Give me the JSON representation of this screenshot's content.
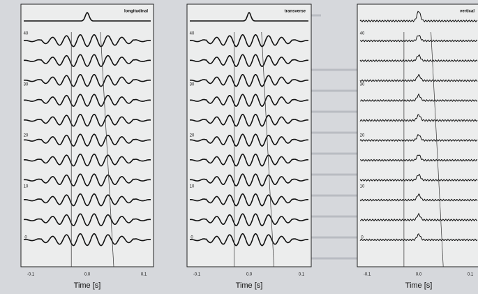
{
  "panels": [
    {
      "title": "longitudinal",
      "y_labels": [
        "40",
        "30",
        "20",
        "10",
        "0"
      ],
      "x_labels": [
        "-0.1",
        "0.0",
        "0.1"
      ],
      "x_axis_label": "Time [s]"
    },
    {
      "title": "transverse",
      "y_labels": [
        "40",
        "30",
        "20",
        "10",
        "0"
      ],
      "x_labels": [
        "-0.1",
        "0.0",
        "0.1"
      ],
      "x_axis_label": "Time [s]"
    },
    {
      "title": "vertical",
      "y_labels": [
        "40",
        "30",
        "20",
        "10",
        "0"
      ],
      "x_labels": [
        "-0.1",
        "0.0",
        "0.1"
      ],
      "x_axis_label": "Time [s]"
    }
  ]
}
